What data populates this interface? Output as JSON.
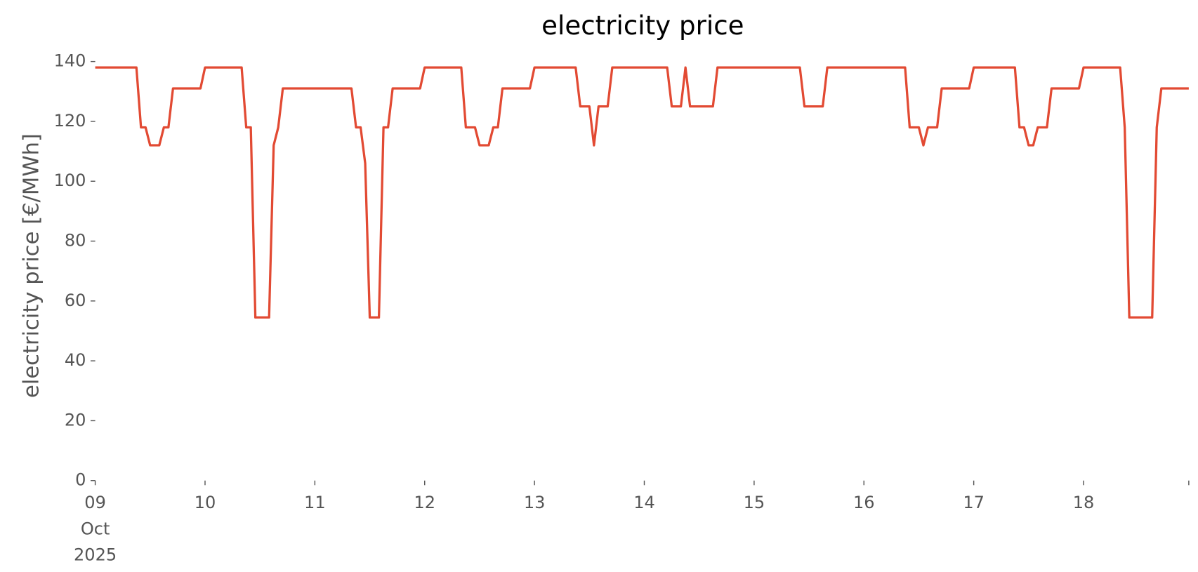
{
  "chart_data": {
    "type": "line",
    "title": "electricity price",
    "ylabel": "electricity price [€/MWh]",
    "xlim": [
      0,
      239
    ],
    "ylim": [
      0,
      140
    ],
    "yticks": [
      0,
      20,
      40,
      60,
      80,
      100,
      120,
      140
    ],
    "xticks": [
      {
        "value": 0,
        "label": "09\nOct\n2025"
      },
      {
        "value": 24,
        "label": "10"
      },
      {
        "value": 48,
        "label": "11"
      },
      {
        "value": 72,
        "label": "12"
      },
      {
        "value": 96,
        "label": "13"
      },
      {
        "value": 120,
        "label": "14"
      },
      {
        "value": 144,
        "label": "15"
      },
      {
        "value": 168,
        "label": "16"
      },
      {
        "value": 192,
        "label": "17"
      },
      {
        "value": 216,
        "label": "18"
      }
    ],
    "grid": false,
    "series": [
      {
        "color": "#E24A33",
        "x": [
          0,
          9,
          10,
          11,
          12,
          14,
          15,
          16,
          17,
          23,
          24,
          32,
          33,
          34,
          35,
          38,
          39,
          40,
          41,
          56,
          57,
          58,
          59,
          60,
          62,
          63,
          64,
          65,
          71,
          72,
          80,
          81,
          83,
          84,
          86,
          87,
          88,
          89,
          95,
          96,
          105,
          106,
          108,
          109,
          110,
          112,
          113,
          125,
          126,
          128,
          129,
          130,
          135,
          136,
          154,
          155,
          159,
          160,
          177,
          178,
          180,
          181,
          182,
          184,
          185,
          191,
          192,
          201,
          202,
          203,
          204,
          205,
          206,
          208,
          209,
          215,
          216,
          224,
          225,
          226,
          231,
          232,
          233,
          239
        ],
        "values": [
          138,
          138,
          118,
          118,
          112,
          112,
          118,
          118,
          131,
          131,
          138,
          138,
          118,
          118,
          54.5,
          54.5,
          112,
          118,
          131,
          131,
          118,
          118,
          106,
          54.5,
          54.5,
          118,
          118,
          131,
          131,
          138,
          138,
          118,
          118,
          112,
          112,
          118,
          118,
          131,
          131,
          138,
          138,
          125,
          125,
          112,
          125,
          125,
          138,
          138,
          125,
          125,
          138,
          125,
          125,
          138,
          138,
          125,
          125,
          138,
          138,
          118,
          118,
          112,
          118,
          118,
          131,
          131,
          138,
          138,
          118,
          118,
          112,
          112,
          118,
          118,
          131,
          131,
          138,
          138,
          118,
          54.5,
          54.5,
          118,
          131,
          131
        ]
      }
    ]
  }
}
